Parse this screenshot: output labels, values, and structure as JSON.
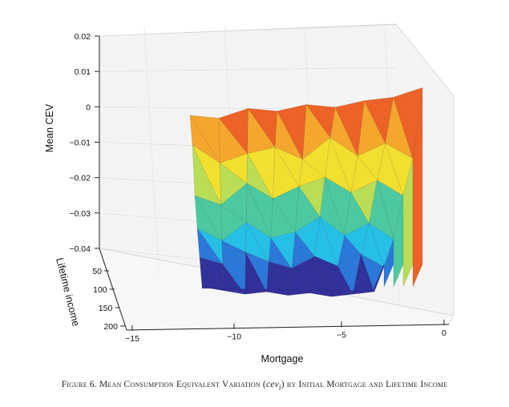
{
  "chart_data": {
    "type": "surface3d",
    "zlabel": "Mean CEV",
    "xlabel": "Mortgage",
    "ylabel": "Lifetime income",
    "zlim": [
      -0.045,
      0.022
    ],
    "x_ticks": [
      "−15",
      "−10",
      "−5",
      "0"
    ],
    "y_ticks": [
      "50",
      "100",
      "150",
      "200"
    ],
    "z_ticks": [
      "0.02",
      "0.01",
      "0",
      "−0.01",
      "−0.02",
      "−0.03",
      "−0.04"
    ],
    "x_range": [
      -15,
      0
    ],
    "y_range": [
      50,
      200
    ],
    "colormap": [
      "#30319a",
      "#2b78d8",
      "#26bfe6",
      "#4cc9a0",
      "#b9dd57",
      "#f3df2e",
      "#f4a62d",
      "#ec6227",
      "#d6281f"
    ],
    "surface_rows": [
      {
        "income": 50,
        "mortgage": [
          -12,
          -11,
          -10,
          -9,
          -8,
          -7,
          -6,
          -5,
          -4.5
        ],
        "cev": [
          -0.04,
          -0.041,
          -0.042,
          -0.041,
          -0.042,
          -0.041,
          -0.042,
          -0.041,
          -0.04
        ]
      },
      {
        "income": 100,
        "mortgage": [
          -12,
          -11,
          -10,
          -9,
          -8,
          -7,
          -6,
          -5,
          -4.5
        ],
        "cev": [
          -0.032,
          -0.034,
          -0.03,
          -0.033,
          -0.035,
          -0.031,
          -0.034,
          -0.03,
          -0.034
        ]
      },
      {
        "income": 150,
        "mortgage": [
          -12,
          -11,
          -10,
          -9,
          -8,
          -7,
          -6,
          -5,
          -4.5
        ],
        "cev": [
          -0.024,
          -0.028,
          -0.022,
          -0.027,
          -0.025,
          -0.02,
          -0.026,
          -0.022,
          -0.027
        ]
      },
      {
        "income": 200,
        "mortgage": [
          -12,
          -11,
          -10,
          -9,
          -8,
          -7,
          -6,
          -5,
          -4.5
        ],
        "cev": [
          -0.015,
          -0.018,
          -0.011,
          -0.016,
          -0.012,
          -0.009,
          -0.014,
          -0.01,
          -0.015
        ]
      },
      {
        "income": 250,
        "mortgage": [
          -12,
          -11,
          -10,
          -9,
          -8,
          -7,
          -6,
          -5,
          -4.5
        ],
        "cev": [
          0,
          -0.006,
          -0.003,
          -0.001,
          -0.005,
          0.002,
          -0.004,
          0.0,
          -0.005
        ]
      },
      {
        "income": 300,
        "mortgage": [
          -12,
          -11,
          -10,
          -9,
          -8,
          -7,
          -6,
          -5,
          -4.5
        ],
        "cev": [
          0.008,
          0.007,
          0.01,
          0.009,
          0.011,
          0.01,
          0.012,
          0.013,
          0.016
        ]
      }
    ]
  },
  "caption": {
    "figure_label": "Figure 6.",
    "text_before": "Mean Consumption Equivalent Variation (",
    "symbol": "cev",
    "subscript": "i",
    "text_after": ") by Initial Mortgage and Lifetime Income"
  }
}
